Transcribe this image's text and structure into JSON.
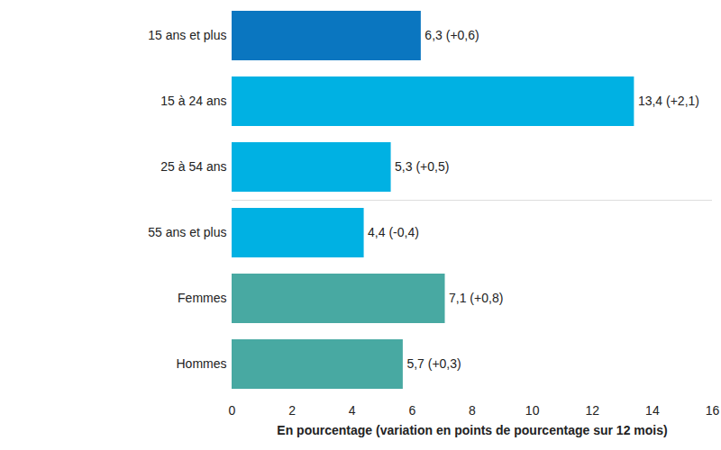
{
  "chart_data": {
    "type": "bar",
    "orientation": "horizontal",
    "categories": [
      "15 ans et plus",
      "15 à 24 ans",
      "25 à 54 ans",
      "55 ans et plus",
      "Femmes",
      "Hommes"
    ],
    "values": [
      6.3,
      13.4,
      5.3,
      4.4,
      7.1,
      5.7
    ],
    "value_labels": [
      "6,3 (+0,6)",
      "13,4 (+2,1)",
      "5,3 (+0,5)",
      "4,4 (-0,4)",
      "7,1 (+0,8)",
      "5,7 (+0,3)"
    ],
    "colors": [
      "#0a76c0",
      "#00b1e3",
      "#00b1e3",
      "#00b1e3",
      "#48a9a2",
      "#48a9a2"
    ],
    "xlabel": "En pourcentage (variation en points de pourcentage sur 12 mois)",
    "xlim": [
      0,
      16
    ],
    "xticks": [
      0,
      2,
      4,
      6,
      8,
      10,
      12,
      14,
      16
    ],
    "data_labels": true,
    "grid": false
  }
}
